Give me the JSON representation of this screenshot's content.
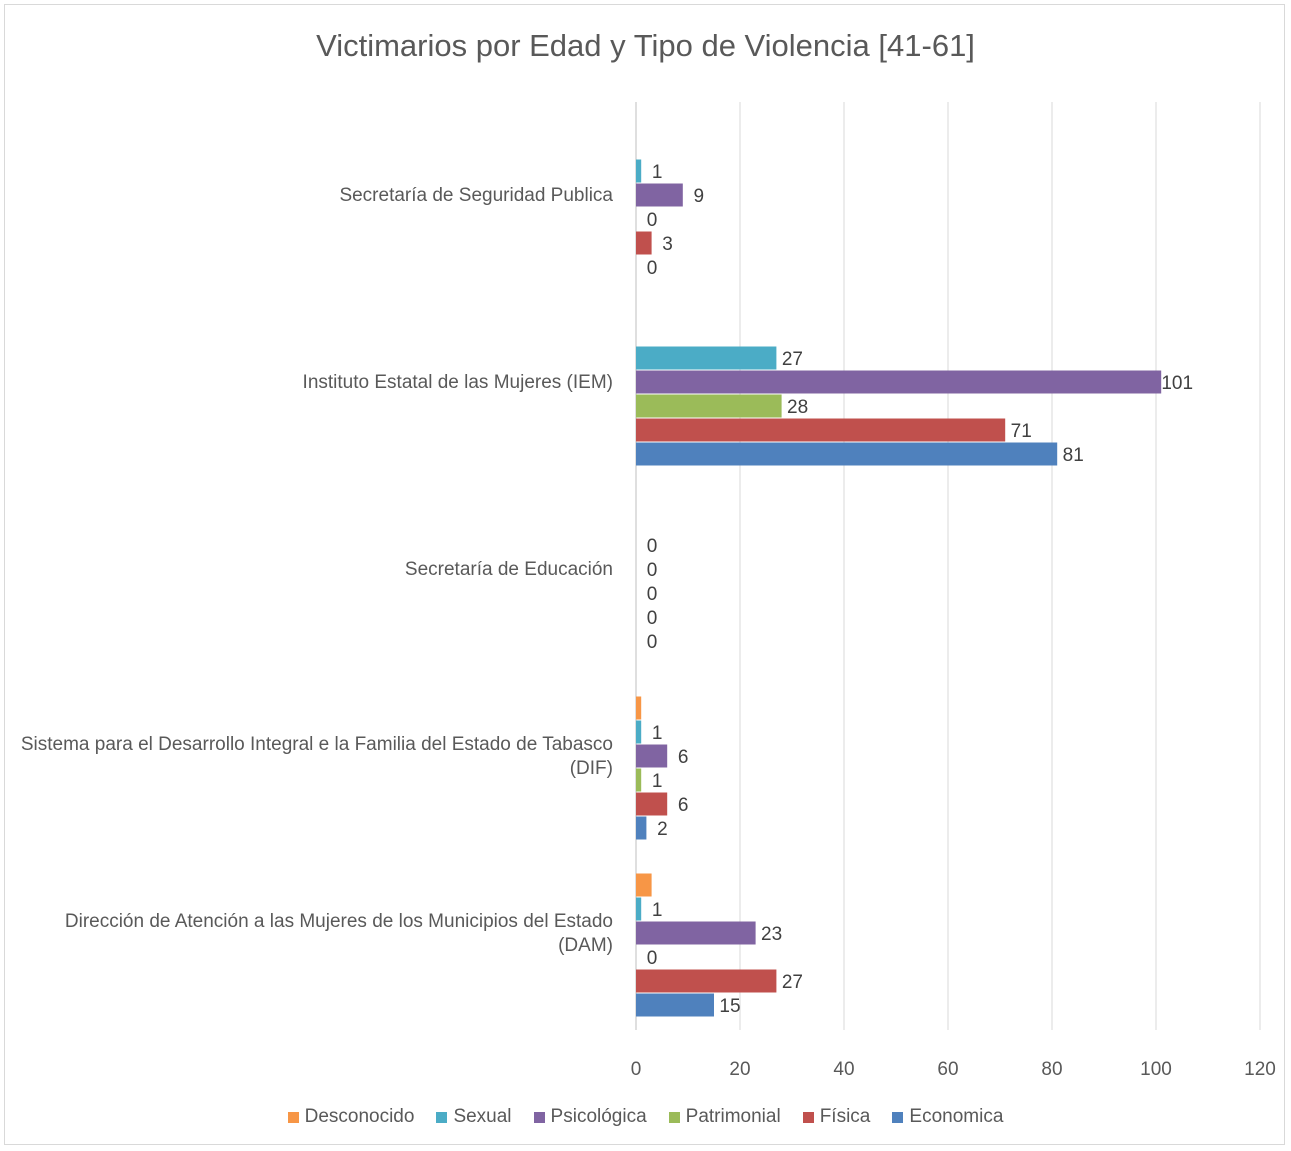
{
  "chart_data": {
    "type": "bar",
    "orientation": "horizontal",
    "title": "Victimarios por Edad y Tipo de Violencia [41-61]",
    "categories": [
      "Secretaría de Seguridad Publica",
      "Instituto Estatal de las Mujeres (IEM)",
      "Secretaría de Educación",
      "Sistema para el Desarrollo Integral e la Familia del Estado de Tabasco (DIF)",
      "Dirección de Atención a las Mujeres de los Municipios del Estado (DAM)"
    ],
    "series": [
      {
        "name": "Desconocido",
        "color": "#F79646",
        "values": [
          null,
          null,
          null,
          1,
          3
        ],
        "labels": [
          false,
          false,
          false,
          false,
          false
        ]
      },
      {
        "name": "Sexual",
        "color": "#4BACC6",
        "values": [
          1,
          27,
          0,
          1,
          1
        ],
        "labels": [
          true,
          true,
          true,
          true,
          true
        ]
      },
      {
        "name": "Psicológica",
        "color": "#8064A2",
        "values": [
          9,
          101,
          0,
          6,
          23
        ],
        "labels": [
          true,
          true,
          true,
          true,
          true
        ]
      },
      {
        "name": "Patrimonial",
        "color": "#9BBB59",
        "values": [
          0,
          28,
          0,
          1,
          0
        ],
        "labels": [
          true,
          true,
          true,
          true,
          true
        ]
      },
      {
        "name": "Física",
        "color": "#C0504D",
        "values": [
          3,
          71,
          0,
          6,
          27
        ],
        "labels": [
          true,
          true,
          true,
          true,
          true
        ]
      },
      {
        "name": "Economica",
        "color": "#4F81BD",
        "values": [
          0,
          81,
          0,
          2,
          15
        ],
        "labels": [
          true,
          true,
          true,
          true,
          true
        ]
      }
    ],
    "xlim": [
      0,
      120
    ],
    "xticks": [
      0,
      20,
      40,
      60,
      80,
      100,
      120
    ],
    "grid": "vertical",
    "legend_position": "bottom"
  }
}
